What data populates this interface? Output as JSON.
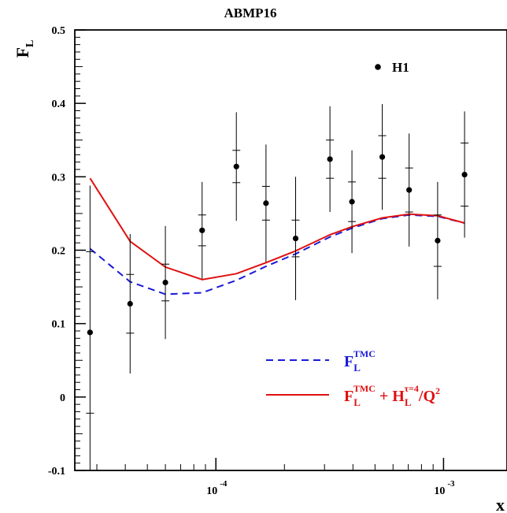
{
  "chart_data": {
    "type": "scatter",
    "title": "ABMP16",
    "xlabel": "x",
    "ylabel": "F_L",
    "xscale": "log",
    "xlim": [
      2.4e-05,
      0.0019
    ],
    "ylim": [
      -0.1,
      0.5
    ],
    "yticks": [
      "-0.1",
      "0",
      "0.1",
      "0.2",
      "0.3",
      "0.4",
      "0.5"
    ],
    "xticks": [
      {
        "value": 0.0001,
        "base": "10",
        "exp": "-4"
      },
      {
        "value": 0.001,
        "base": "10",
        "exp": "-3"
      }
    ],
    "grid": false,
    "legend": {
      "placement": "bottom-right",
      "data_label": "H1",
      "entries": [
        {
          "series": "tmc",
          "main": "F",
          "sub": "L",
          "sup": "TMC",
          "color": "#1a1ad6"
        },
        {
          "series": "tmc_ht",
          "main": "F",
          "sub": "L",
          "sup": "TMC",
          "plus": " + H",
          "sub2": "L",
          "sup2": "τ=4",
          "tail": "/Q",
          "sup3": "2",
          "color": "#e01010"
        }
      ]
    },
    "data_points": [
      {
        "x": 2.8e-05,
        "y": 0.088,
        "stat": 0.11,
        "tot": 0.2
      },
      {
        "x": 4.2e-05,
        "y": 0.127,
        "stat": 0.04,
        "tot": 0.095
      },
      {
        "x": 6e-05,
        "y": 0.156,
        "stat": 0.025,
        "tot": 0.077
      },
      {
        "x": 8.7e-05,
        "y": 0.227,
        "stat": 0.021,
        "tot": 0.066
      },
      {
        "x": 0.000123,
        "y": 0.314,
        "stat": 0.022,
        "tot": 0.074
      },
      {
        "x": 0.000166,
        "y": 0.264,
        "stat": 0.023,
        "tot": 0.08
      },
      {
        "x": 0.000224,
        "y": 0.216,
        "stat": 0.025,
        "tot": 0.084
      },
      {
        "x": 0.000317,
        "y": 0.324,
        "stat": 0.026,
        "tot": 0.072
      },
      {
        "x": 0.000396,
        "y": 0.266,
        "stat": 0.027,
        "tot": 0.07
      },
      {
        "x": 0.000538,
        "y": 0.327,
        "stat": 0.029,
        "tot": 0.072
      },
      {
        "x": 0.000706,
        "y": 0.282,
        "stat": 0.03,
        "tot": 0.077
      },
      {
        "x": 0.000942,
        "y": 0.213,
        "stat": 0.035,
        "tot": 0.08
      },
      {
        "x": 0.001237,
        "y": 0.303,
        "stat": 0.043,
        "tot": 0.086
      }
    ],
    "series": [
      {
        "id": "tmc",
        "style": "dashed",
        "color": "#1a1ad6",
        "x": [
          2.8e-05,
          4.2e-05,
          6e-05,
          8.7e-05,
          0.000123,
          0.000166,
          0.000224,
          0.000317,
          0.000396,
          0.000538,
          0.000706,
          0.000942,
          0.001237
        ],
        "y": [
          0.202,
          0.157,
          0.14,
          0.142,
          0.159,
          0.178,
          0.195,
          0.218,
          0.23,
          0.243,
          0.248,
          0.246,
          0.237
        ]
      },
      {
        "id": "tmc_ht",
        "style": "solid",
        "color": "#e01010",
        "x": [
          2.8e-05,
          4.2e-05,
          6e-05,
          8.7e-05,
          0.000123,
          0.000166,
          0.000224,
          0.000317,
          0.000396,
          0.000538,
          0.000706,
          0.000942,
          0.001237
        ],
        "y": [
          0.298,
          0.212,
          0.177,
          0.16,
          0.168,
          0.183,
          0.199,
          0.221,
          0.232,
          0.244,
          0.249,
          0.247,
          0.237
        ]
      }
    ]
  }
}
